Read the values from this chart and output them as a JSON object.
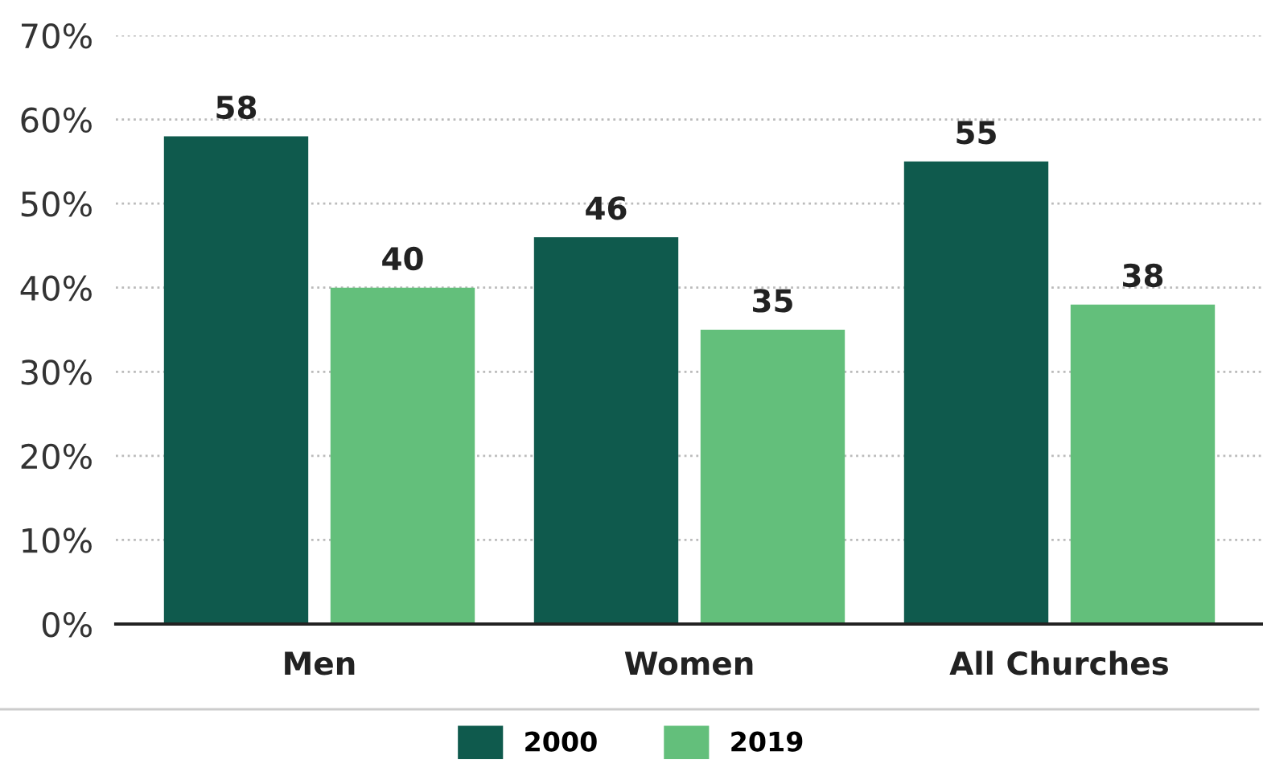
{
  "chart_data": {
    "type": "bar",
    "categories": [
      "Men",
      "Women",
      "All Churches"
    ],
    "series": [
      {
        "name": "2000",
        "color": "#0f5a4d",
        "values": [
          58,
          46,
          55
        ]
      },
      {
        "name": "2019",
        "color": "#63bf7b",
        "values": [
          40,
          35,
          38
        ]
      }
    ],
    "ylim": [
      0,
      70
    ],
    "yticks": [
      {
        "value": 0,
        "label": "0%"
      },
      {
        "value": 10,
        "label": "10%"
      },
      {
        "value": 20,
        "label": "20%"
      },
      {
        "value": 30,
        "label": "30%"
      },
      {
        "value": 40,
        "label": "40%"
      },
      {
        "value": 50,
        "label": "50%"
      },
      {
        "value": 60,
        "label": "60%"
      },
      {
        "value": 70,
        "label": "70%"
      }
    ],
    "grid": "y",
    "legend": "bottom",
    "data_labels": true
  }
}
